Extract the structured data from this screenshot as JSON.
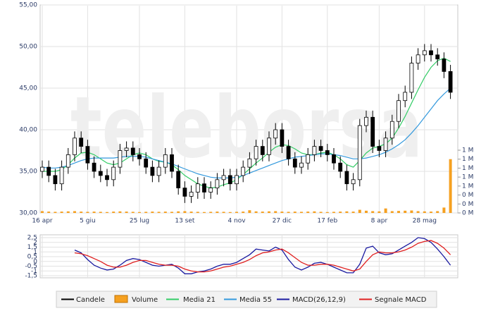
{
  "chart_data": [
    {
      "type": "candlestick",
      "watermark": "teleborsa",
      "categories": [
        "16 apr",
        null,
        null,
        null,
        null,
        null,
        null,
        "5 giu",
        null,
        null,
        null,
        null,
        null,
        null,
        null,
        "25 lug",
        null,
        null,
        null,
        null,
        null,
        null,
        "13 set",
        null,
        null,
        null,
        null,
        null,
        null,
        null,
        "4 nov",
        null,
        null,
        null,
        null,
        null,
        null,
        "27 dic",
        null,
        null,
        null,
        null,
        null,
        null,
        "17 feb",
        null,
        null,
        null,
        null,
        null,
        null,
        null,
        "8 apr",
        null,
        null,
        null,
        null,
        null,
        null,
        "28 mag",
        null,
        null,
        null,
        null
      ],
      "ylim": [
        30,
        55
      ],
      "yticks": [
        {
          "value": 55,
          "label": "55,00"
        },
        {
          "value": 50,
          "label": "50,00"
        },
        {
          "value": 45,
          "label": "45,00"
        },
        {
          "value": 40,
          "label": "40,00"
        },
        {
          "value": 35,
          "label": "35,00"
        },
        {
          "value": 30,
          "label": "30,00"
        }
      ],
      "y2lim": [
        0,
        1400000
      ],
      "y2ticks": [
        {
          "value": 1400000,
          "label": "1 M"
        },
        {
          "value": 1200000,
          "label": "1 M"
        },
        {
          "value": 1000000,
          "label": "1 M"
        },
        {
          "value": 800000,
          "label": "1 M"
        },
        {
          "value": 600000,
          "label": "1 M"
        },
        {
          "value": 400000,
          "label": "0 M"
        },
        {
          "value": 200000,
          "label": "0 M"
        },
        {
          "value": 0,
          "label": "0 M"
        }
      ],
      "grid": true,
      "candles": {
        "name": "Candele",
        "color": "#000000",
        "open": [
          35.0,
          35.5,
          34.5,
          33.5,
          35.5,
          37.0,
          39.0,
          38.0,
          36.0,
          35.0,
          34.5,
          34.0,
          35.5,
          37.5,
          37.8,
          37.0,
          36.5,
          35.5,
          34.5,
          35.5,
          37.0,
          35.0,
          33.0,
          32.0,
          32.5,
          33.5,
          32.5,
          33.0,
          34.0,
          34.5,
          33.5,
          34.5,
          35.5,
          36.5,
          38.0,
          37.0,
          39.0,
          40.0,
          38.0,
          36.5,
          35.5,
          36.0,
          37.0,
          38.0,
          37.5,
          37.0,
          36.0,
          35.0,
          33.5,
          34.0,
          40.5,
          41.5,
          38.0,
          37.5,
          39.0,
          41.0,
          43.5,
          44.5,
          48.0,
          49.0,
          49.5,
          49.0,
          48.5,
          47.0
        ],
        "high": [
          36.3,
          36.3,
          35.3,
          36.3,
          37.8,
          39.8,
          39.8,
          38.8,
          36.8,
          35.8,
          35.3,
          36.3,
          38.3,
          38.6,
          38.6,
          37.8,
          37.3,
          36.3,
          36.3,
          37.8,
          37.8,
          35.8,
          33.8,
          33.3,
          34.3,
          34.3,
          33.8,
          34.8,
          35.3,
          35.3,
          35.3,
          36.3,
          37.3,
          38.8,
          38.8,
          39.8,
          40.8,
          40.8,
          38.8,
          37.3,
          36.8,
          37.8,
          38.8,
          38.8,
          38.3,
          37.8,
          36.8,
          35.8,
          34.8,
          41.3,
          42.3,
          42.3,
          38.8,
          39.8,
          41.8,
          44.3,
          45.3,
          48.8,
          49.8,
          50.3,
          50.3,
          49.8,
          49.3,
          47.8
        ],
        "low": [
          34.2,
          33.7,
          32.7,
          32.7,
          34.7,
          36.2,
          37.2,
          35.2,
          34.2,
          33.7,
          33.2,
          33.2,
          34.7,
          36.7,
          36.2,
          35.7,
          34.7,
          33.7,
          33.7,
          34.7,
          34.2,
          32.2,
          31.2,
          31.2,
          31.7,
          31.7,
          31.7,
          32.2,
          33.2,
          32.7,
          32.7,
          33.7,
          34.7,
          35.7,
          36.2,
          36.2,
          38.2,
          37.2,
          35.7,
          34.7,
          34.7,
          35.2,
          36.2,
          36.7,
          36.2,
          35.2,
          34.2,
          32.7,
          32.7,
          33.2,
          39.7,
          37.2,
          36.7,
          36.7,
          38.2,
          40.2,
          42.7,
          43.7,
          47.2,
          48.2,
          48.2,
          47.7,
          46.2,
          43.7
        ],
        "close": [
          35.5,
          34.5,
          33.5,
          35.5,
          37.0,
          39.0,
          38.0,
          36.0,
          35.0,
          34.5,
          34.0,
          35.5,
          37.5,
          37.8,
          37.0,
          36.5,
          35.5,
          34.5,
          35.5,
          37.0,
          35.0,
          33.0,
          32.0,
          32.5,
          33.5,
          32.5,
          33.0,
          34.0,
          34.5,
          33.5,
          34.5,
          35.5,
          36.5,
          38.0,
          37.0,
          39.0,
          40.0,
          38.0,
          36.5,
          35.5,
          36.0,
          37.0,
          38.0,
          37.5,
          37.0,
          36.0,
          35.0,
          33.5,
          34.0,
          40.5,
          41.5,
          38.0,
          37.5,
          39.0,
          41.0,
          43.5,
          44.5,
          48.0,
          49.0,
          49.5,
          49.0,
          48.5,
          47.0,
          44.5
        ]
      },
      "series": [
        {
          "name": "Volume",
          "color": "#f5a020",
          "axis": "y2",
          "values": [
            40000,
            30000,
            25000,
            30000,
            35000,
            40000,
            30000,
            25000,
            30000,
            25000,
            20000,
            30000,
            35000,
            30000,
            25000,
            20000,
            25000,
            30000,
            25000,
            30000,
            25000,
            35000,
            40000,
            30000,
            25000,
            20000,
            25000,
            30000,
            25000,
            20000,
            25000,
            30000,
            60000,
            35000,
            30000,
            35000,
            40000,
            30000,
            25000,
            30000,
            25000,
            30000,
            35000,
            25000,
            20000,
            25000,
            30000,
            35000,
            30000,
            70000,
            50000,
            40000,
            35000,
            100000,
            40000,
            45000,
            50000,
            55000,
            40000,
            35000,
            30000,
            40000,
            120000,
            1200000
          ]
        },
        {
          "name": "Media 21",
          "color": "#33cc66",
          "values": [
            35,
            35,
            35,
            35.2,
            35.8,
            36.6,
            37.2,
            37.3,
            37,
            36.5,
            36,
            35.8,
            36,
            36.5,
            37,
            37.2,
            37,
            36.5,
            36.2,
            36.1,
            35.8,
            35.2,
            34.5,
            34,
            33.5,
            33.2,
            33,
            33.1,
            33.4,
            33.6,
            34,
            34.6,
            35.3,
            36,
            36.6,
            37.3,
            37.9,
            38.2,
            38.1,
            37.7,
            37.2,
            37,
            37,
            37.2,
            37.3,
            37,
            36.5,
            35.8,
            35.5,
            36.3,
            37.2,
            37.8,
            38,
            38.3,
            39,
            40.2,
            41.6,
            43.2,
            44.8,
            46.3,
            47.5,
            48.3,
            48.6,
            48.2
          ]
        },
        {
          "name": "Media 55",
          "color": "#3399dd",
          "values": [
            35.5,
            35.4,
            35.4,
            35.5,
            35.7,
            36,
            36.3,
            36.5,
            36.6,
            36.6,
            36.6,
            36.6,
            36.7,
            36.8,
            36.8,
            36.8,
            36.7,
            36.5,
            36.3,
            36.1,
            35.9,
            35.6,
            35.3,
            35,
            34.7,
            34.5,
            34.3,
            34.2,
            34.2,
            34.2,
            34.3,
            34.5,
            34.8,
            35.1,
            35.4,
            35.7,
            36.0,
            36.3,
            36.5,
            36.7,
            36.8,
            36.9,
            37,
            37.1,
            37.1,
            37,
            36.9,
            36.7,
            36.5,
            36.5,
            36.6,
            36.8,
            37,
            37.3,
            37.7,
            38.2,
            38.8,
            39.6,
            40.5,
            41.5,
            42.5,
            43.5,
            44.3,
            45
          ]
        }
      ]
    },
    {
      "type": "line",
      "ylim": [
        -1.5,
        2.5
      ],
      "yticks": [
        {
          "value": 2.5,
          "label": "2,5"
        },
        2,
        {
          "value": 1.5,
          "label": "1,5"
        },
        1,
        {
          "value": 0.5,
          "label": "0,5"
        },
        0,
        {
          "value": -0.5,
          "label": "-0,5"
        },
        -1,
        {
          "value": -1.5,
          "label": "-1,5"
        }
      ],
      "grid": true,
      "series": [
        {
          "name": "MACD(26,12,9)",
          "color": "#1a1aa0",
          "values": [
            null,
            null,
            null,
            null,
            null,
            1.2,
            0.9,
            0.2,
            -0.4,
            -0.7,
            -0.9,
            -0.8,
            -0.4,
            0.1,
            0.3,
            0.2,
            -0.1,
            -0.4,
            -0.5,
            -0.4,
            -0.3,
            -0.7,
            -1.3,
            -1.3,
            -1.1,
            -1.0,
            -0.8,
            -0.5,
            -0.3,
            -0.3,
            -0.1,
            0.3,
            0.7,
            1.3,
            1.2,
            1.1,
            1.5,
            1.2,
            0.2,
            -0.6,
            -0.9,
            -0.6,
            -0.2,
            -0.1,
            -0.3,
            -0.6,
            -0.9,
            -1.2,
            -1.2,
            -0.3,
            1.4,
            1.6,
            0.9,
            0.7,
            0.8,
            1.2,
            1.6,
            2.0,
            2.5,
            2.4,
            2.0,
            1.3,
            0.5,
            -0.4
          ]
        },
        {
          "name": "Segnale MACD",
          "color": "#e02020",
          "values": [
            null,
            null,
            null,
            null,
            null,
            0.9,
            0.8,
            0.6,
            0.3,
            0,
            -0.4,
            -0.6,
            -0.6,
            -0.4,
            -0.1,
            0.1,
            0.1,
            -0.1,
            -0.3,
            -0.4,
            -0.4,
            -0.5,
            -0.8,
            -1.0,
            -1.1,
            -1.1,
            -1.0,
            -0.8,
            -0.6,
            -0.5,
            -0.3,
            -0.1,
            0.2,
            0.6,
            0.9,
            1.0,
            1.2,
            1.3,
            0.9,
            0.4,
            -0.1,
            -0.4,
            -0.4,
            -0.3,
            -0.3,
            -0.4,
            -0.6,
            -0.8,
            -1.0,
            -0.8,
            0,
            0.7,
            1.0,
            0.9,
            0.9,
            1.0,
            1.2,
            1.5,
            1.9,
            2.1,
            2.2,
            1.9,
            1.4,
            0.7
          ]
        }
      ]
    }
  ]
}
